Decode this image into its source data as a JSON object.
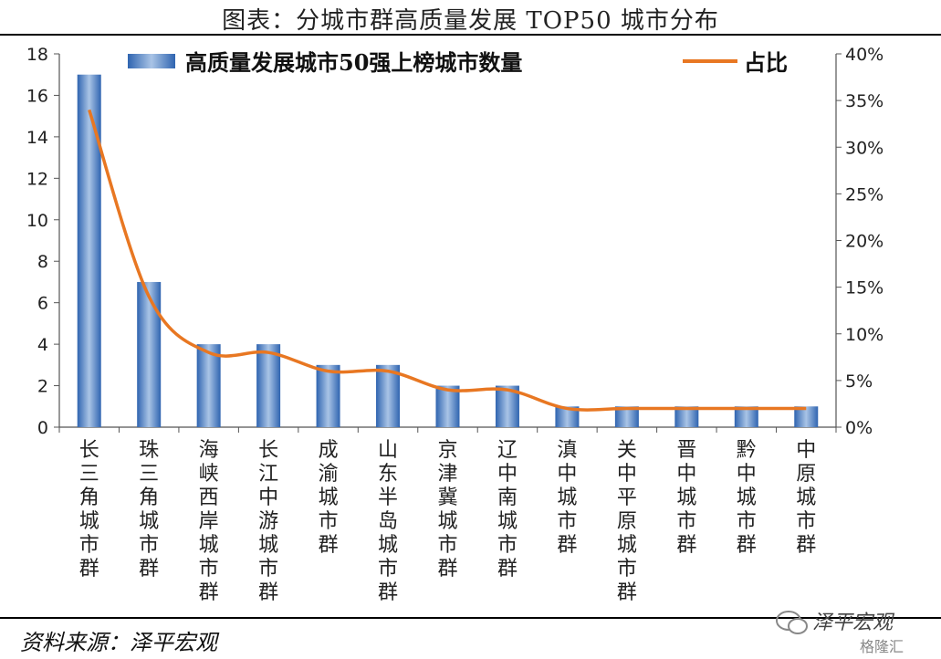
{
  "title": "图表：分城市群高质量发展 TOP50 城市分布",
  "source": "资料来源：泽平宏观",
  "watermark": {
    "text": "泽平宏观",
    "logo": "格隆汇"
  },
  "colors": {
    "bar": "#4a7fc1",
    "line": "#e87722",
    "axis": "#555555"
  },
  "chart_data": {
    "type": "bar",
    "categories": [
      "长三角城市群",
      "珠三角城市群",
      "海峡西岸城市群",
      "长江中游城市群",
      "成渝城市群",
      "山东半岛城市群",
      "京津冀城市群",
      "辽中南城市群",
      "滇中城市群",
      "关中平原城市群",
      "晋中城市群",
      "黔中城市群",
      "中原城市群"
    ],
    "series": [
      {
        "name": "高质量发展城市50强上榜城市数量",
        "type": "bar",
        "axis": "left",
        "values": [
          17,
          7,
          4,
          4,
          3,
          3,
          2,
          2,
          1,
          1,
          1,
          1,
          1
        ]
      },
      {
        "name": "占比",
        "type": "line",
        "axis": "right",
        "values": [
          0.34,
          0.14,
          0.08,
          0.08,
          0.06,
          0.06,
          0.04,
          0.04,
          0.02,
          0.02,
          0.02,
          0.02,
          0.02
        ]
      }
    ],
    "ylim_left": [
      0,
      18
    ],
    "yticks_left": [
      "0",
      "2",
      "4",
      "6",
      "8",
      "10",
      "12",
      "14",
      "16",
      "18"
    ],
    "ylim_right": [
      0,
      0.4
    ],
    "yticks_right": [
      "0%",
      "5%",
      "10%",
      "15%",
      "20%",
      "25%",
      "30%",
      "35%",
      "40%"
    ],
    "legend": {
      "bar_label": "高质量发展城市50强上榜城市数量",
      "line_label": "占比",
      "position": "top"
    },
    "grid": false
  }
}
